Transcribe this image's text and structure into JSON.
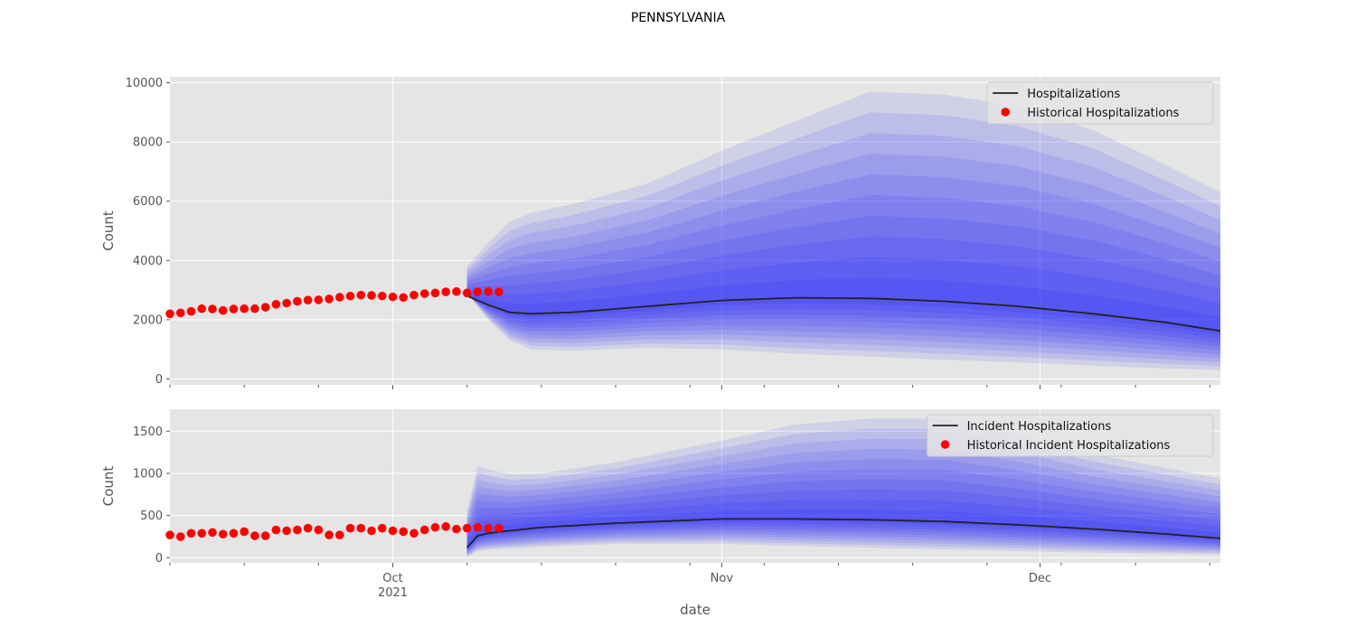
{
  "figure": {
    "title": "PENNSYLVANIA",
    "xlabel": "date"
  },
  "x_axis": {
    "start": "2021-09-10",
    "end": "2021-12-18",
    "major_ticks": [
      {
        "date": "2021-10-01",
        "label": "Oct",
        "sublabel": "2021"
      },
      {
        "date": "2021-11-01",
        "label": "Nov",
        "sublabel": ""
      },
      {
        "date": "2021-12-01",
        "label": "Dec",
        "sublabel": ""
      }
    ],
    "minor_ticks": [
      "2021-09-10",
      "2021-09-17",
      "2021-09-24",
      "2021-10-08",
      "2021-10-15",
      "2021-10-22",
      "2021-10-29",
      "2021-11-05",
      "2021-11-12",
      "2021-11-19",
      "2021-11-26",
      "2021-12-03",
      "2021-12-10",
      "2021-12-17"
    ]
  },
  "colors": {
    "panel_bg": "#e5e5e5",
    "grid": "#ffffff",
    "median_line": "#222222",
    "historical_points": "#ff0000",
    "band": "#0000ff"
  },
  "chart_data": [
    {
      "type": "area",
      "ylabel": "Count",
      "ylim": [
        -200,
        10200
      ],
      "yticks": [
        0,
        2000,
        4000,
        6000,
        8000,
        10000
      ],
      "legend": [
        "Hospitalizations",
        "Historical Hospitalizations"
      ],
      "legend_position": "top-right",
      "grid": true,
      "historical": {
        "name": "Historical Hospitalizations",
        "x": [
          "2021-09-10",
          "2021-09-11",
          "2021-09-12",
          "2021-09-13",
          "2021-09-14",
          "2021-09-15",
          "2021-09-16",
          "2021-09-17",
          "2021-09-18",
          "2021-09-19",
          "2021-09-20",
          "2021-09-21",
          "2021-09-22",
          "2021-09-23",
          "2021-09-24",
          "2021-09-25",
          "2021-09-26",
          "2021-09-27",
          "2021-09-28",
          "2021-09-29",
          "2021-09-30",
          "2021-10-01",
          "2021-10-02",
          "2021-10-03",
          "2021-10-04",
          "2021-10-05",
          "2021-10-06",
          "2021-10-07",
          "2021-10-08",
          "2021-10-09",
          "2021-10-10",
          "2021-10-11"
        ],
        "y": [
          2200,
          2230,
          2280,
          2370,
          2360,
          2310,
          2360,
          2370,
          2370,
          2420,
          2520,
          2560,
          2620,
          2660,
          2670,
          2700,
          2760,
          2800,
          2830,
          2820,
          2800,
          2770,
          2750,
          2830,
          2880,
          2900,
          2940,
          2950,
          2900,
          2940,
          2950,
          2940
        ]
      },
      "forecast": {
        "name": "Hospitalizations",
        "x": [
          "2021-10-08",
          "2021-10-10",
          "2021-10-12",
          "2021-10-14",
          "2021-10-18",
          "2021-10-25",
          "2021-11-01",
          "2021-11-08",
          "2021-11-15",
          "2021-11-22",
          "2021-11-29",
          "2021-12-06",
          "2021-12-13",
          "2021-12-18"
        ],
        "median": [
          2800,
          2500,
          2250,
          2200,
          2250,
          2450,
          2650,
          2740,
          2720,
          2620,
          2450,
          2200,
          1900,
          1620
        ],
        "lower_outer": [
          2900,
          2000,
          1300,
          1000,
          950,
          1050,
          1000,
          850,
          750,
          650,
          550,
          450,
          350,
          300
        ],
        "upper_outer": [
          3800,
          4600,
          5300,
          5600,
          5900,
          6600,
          7700,
          8700,
          9700,
          9600,
          9200,
          8400,
          7200,
          6300
        ]
      }
    },
    {
      "type": "area",
      "ylabel": "Count",
      "ylim": [
        -60,
        1760
      ],
      "yticks": [
        0,
        500,
        1000,
        1500
      ],
      "legend": [
        "Incident Hospitalizations",
        "Historical Incident Hospitalizations"
      ],
      "legend_position": "top-right",
      "grid": true,
      "historical": {
        "name": "Historical Incident Hospitalizations",
        "x": [
          "2021-09-10",
          "2021-09-11",
          "2021-09-12",
          "2021-09-13",
          "2021-09-14",
          "2021-09-15",
          "2021-09-16",
          "2021-09-17",
          "2021-09-18",
          "2021-09-19",
          "2021-09-20",
          "2021-09-21",
          "2021-09-22",
          "2021-09-23",
          "2021-09-24",
          "2021-09-25",
          "2021-09-26",
          "2021-09-27",
          "2021-09-28",
          "2021-09-29",
          "2021-09-30",
          "2021-10-01",
          "2021-10-02",
          "2021-10-03",
          "2021-10-04",
          "2021-10-05",
          "2021-10-06",
          "2021-10-07",
          "2021-10-08",
          "2021-10-09",
          "2021-10-10",
          "2021-10-11"
        ],
        "y": [
          270,
          250,
          290,
          290,
          300,
          280,
          290,
          310,
          260,
          260,
          330,
          320,
          330,
          350,
          330,
          270,
          270,
          350,
          350,
          320,
          350,
          320,
          310,
          290,
          330,
          360,
          370,
          340,
          350,
          360,
          350,
          350
        ]
      },
      "forecast": {
        "name": "Incident Hospitalizations",
        "x": [
          "2021-10-08",
          "2021-10-09",
          "2021-10-10",
          "2021-10-12",
          "2021-10-15",
          "2021-10-22",
          "2021-11-01",
          "2021-11-08",
          "2021-11-15",
          "2021-11-22",
          "2021-11-29",
          "2021-12-06",
          "2021-12-13",
          "2021-12-18"
        ],
        "median": [
          120,
          260,
          290,
          320,
          360,
          410,
          460,
          460,
          450,
          430,
          390,
          340,
          280,
          230
        ],
        "lower_outer": [
          10,
          80,
          95,
          110,
          130,
          165,
          165,
          140,
          120,
          100,
          80,
          60,
          45,
          40
        ],
        "upper_outer": [
          550,
          1090,
          1050,
          990,
          1000,
          1130,
          1390,
          1580,
          1650,
          1650,
          1460,
          1230,
          1060,
          940
        ]
      }
    }
  ]
}
